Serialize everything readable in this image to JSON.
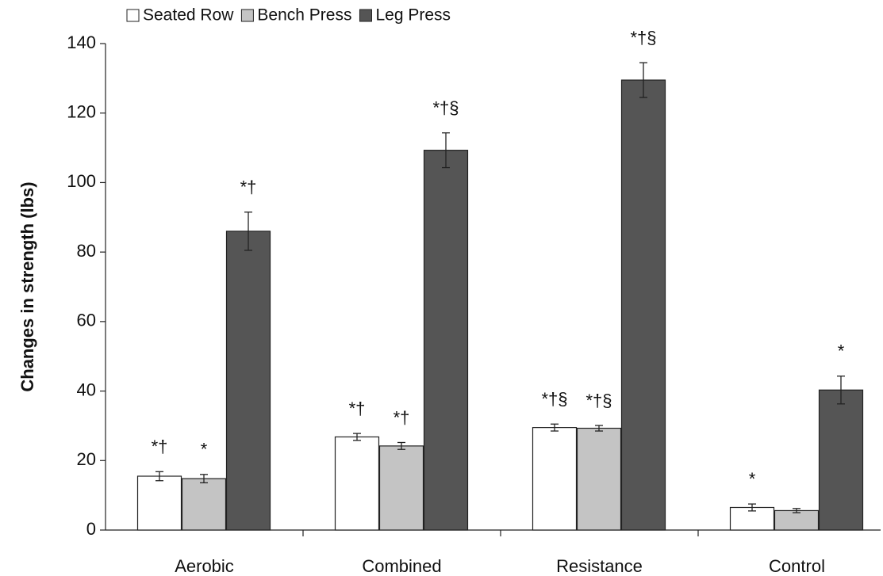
{
  "chart_data": {
    "type": "bar",
    "ylabel": "Changes in strength (lbs)",
    "categories": [
      "Aerobic",
      "Combined",
      "Resistance",
      "Control"
    ],
    "series": [
      {
        "name": "Seated Row",
        "color": "#ffffff",
        "values": [
          15.5,
          26.8,
          29.5,
          6.5
        ],
        "errors": [
          1.3,
          1.0,
          1.0,
          1.0
        ],
        "annotations": [
          "*†",
          "*†",
          "*†§",
          "*"
        ]
      },
      {
        "name": "Bench Press",
        "color": "#c4c4c4",
        "values": [
          14.8,
          24.2,
          29.3,
          5.6
        ],
        "errors": [
          1.2,
          1.0,
          0.8,
          0.6
        ],
        "annotations": [
          "*",
          "*†",
          "*†§",
          null
        ]
      },
      {
        "name": "Leg Press",
        "color": "#555555",
        "values": [
          86,
          109.3,
          129.5,
          40.3
        ],
        "errors": [
          5.5,
          5.0,
          5.0,
          4.0
        ],
        "annotations": [
          "*†",
          "*†§",
          "*†§",
          "*"
        ]
      }
    ],
    "ylim": [
      0,
      140
    ],
    "yticks": [
      0,
      20,
      40,
      60,
      80,
      100,
      120,
      140
    ],
    "grid": false,
    "legend": "top-left"
  }
}
